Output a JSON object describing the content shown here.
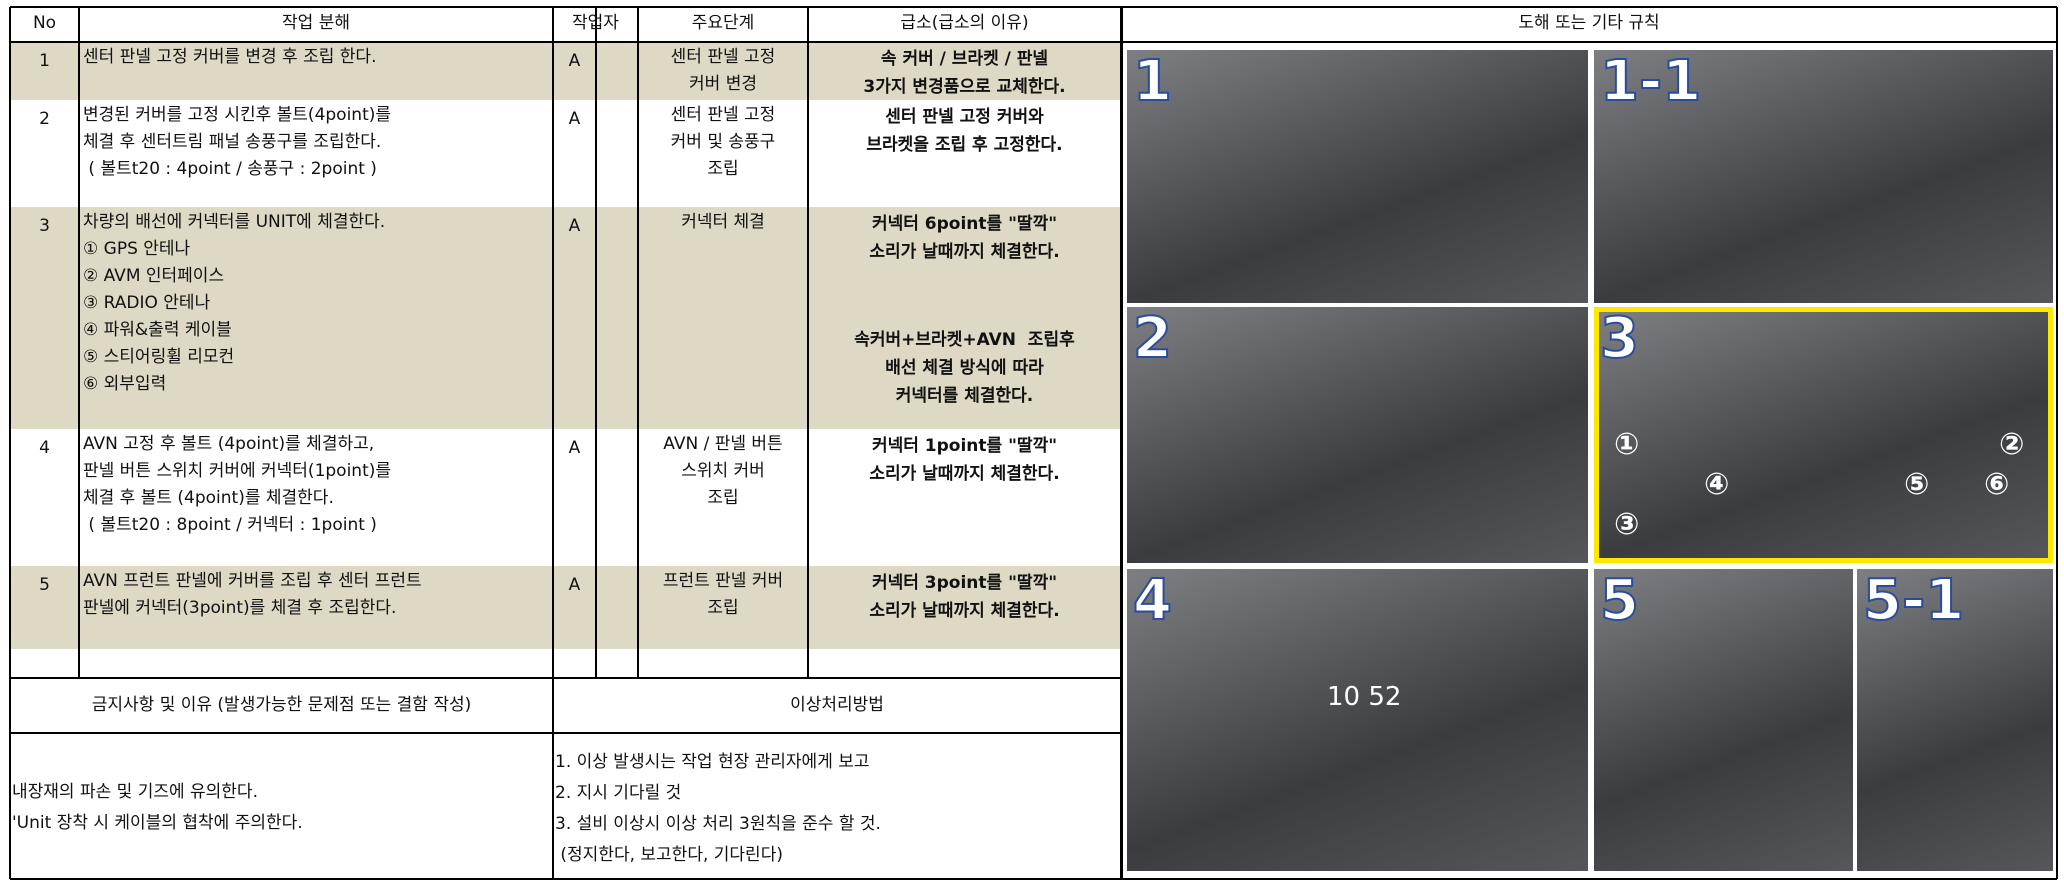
{
  "table": {
    "headers": [
      "No",
      "작업 분해",
      "작업자",
      "주요단계",
      "급소(급소의 이유)",
      "도해 또는 기타 규칙"
    ],
    "rows": [
      {
        "no": "1",
        "steps": [
          "센터 판넬 고정 커버를 변경 후 조립 한다."
        ],
        "worker": "A",
        "key_step": [
          "센터 판넬 고정",
          "커버 변경"
        ],
        "key_point": [
          [
            "속 커버 / 브라켓 / 판넬",
            "3가지 변경품으로 교체한다."
          ]
        ]
      },
      {
        "no": "2",
        "steps": [
          "변경된 커버를 고정 시킨후 볼트(4point)를",
          "체결 후 센터트림 패널 송풍구를 조립한다.",
          " ( 볼트t20 : 4point / 송풍구 : 2point )"
        ],
        "worker": "A",
        "key_step": [
          "센터 판넬 고정",
          "커버 및 송풍구",
          "조립"
        ],
        "key_point": [
          [
            "센터 판넬 고정 커버와",
            "브라켓을 조립 후 고정한다."
          ]
        ]
      },
      {
        "no": "3",
        "steps": [
          "차량의 배선에 커넥터를 UNIT에 체결한다.",
          "① GPS 안테나",
          "② AVM 인터페이스",
          "③ RADIO 안테나",
          "④ 파워&출력 케이블",
          "⑤ 스티어링휠 리모컨",
          "⑥ 외부입력"
        ],
        "worker": "A",
        "key_step": [
          "커넥터 체결"
        ],
        "key_point": [
          [
            "커넥터 6point를 \"딸깍\"",
            "소리가 날때까지 체결한다."
          ],
          [
            "속커버+브라켓+AVN  조립후",
            "배선 체결 방식에 따라",
            "커넥터를 체결한다."
          ]
        ]
      },
      {
        "no": "4",
        "steps": [
          "AVN 고정 후 볼트 (4point)를 체결하고,",
          "판넬 버튼 스위치 커버에 커넥터(1point)를",
          "체결 후 볼트 (4point)를 체결한다.",
          " ( 볼트t20 : 8point / 커넥터 : 1point )"
        ],
        "worker": "A",
        "key_step": [
          "AVN / 판넬 버튼",
          "스위치 커버",
          "조립"
        ],
        "key_point": [
          [
            "커넥터 1point를 \"딸깍\"",
            "소리가 날때까지 체결한다."
          ]
        ]
      },
      {
        "no": "5",
        "steps": [
          "AVN 프런트 판넬에 커버를 조립 후 센터 프런트",
          "판넬에 커넥터(3point)를 체결 후 조립한다."
        ],
        "worker": "A",
        "key_step": [
          "프런트 판넬 커버",
          "조립"
        ],
        "key_point": [
          [
            "커넥터 3point를 \"딸깍\"",
            "소리가 날때까지 체결한다."
          ]
        ]
      }
    ]
  },
  "prohibitions": {
    "header": "금지사항 및 이유 (발생가능한 문제점 또는 결함 작성)",
    "items": [
      "내장재의 파손 및 기즈에 유의한다.",
      "'Unit 장착 시 케이블의 협착에 주의한다."
    ]
  },
  "abnormal": {
    "header": "이상처리방법",
    "items": [
      "1. 이상 발생시는 작업 현장 관리자에게 보고",
      "2. 지시 기다릴 것",
      "3. 설비 이상시 이상 처리 3원칙을 준수 할 것.",
      " (정지한다, 보고한다, 기다린다)"
    ]
  },
  "figures": [
    {
      "label": "1"
    },
    {
      "label": "1-1"
    },
    {
      "label": "2"
    },
    {
      "label": "3",
      "markers": [
        "①",
        "②",
        "③",
        "④",
        "⑤",
        "⑥"
      ]
    },
    {
      "label": "4",
      "display": "10 52"
    },
    {
      "label": "5"
    },
    {
      "label": "5-1"
    }
  ]
}
